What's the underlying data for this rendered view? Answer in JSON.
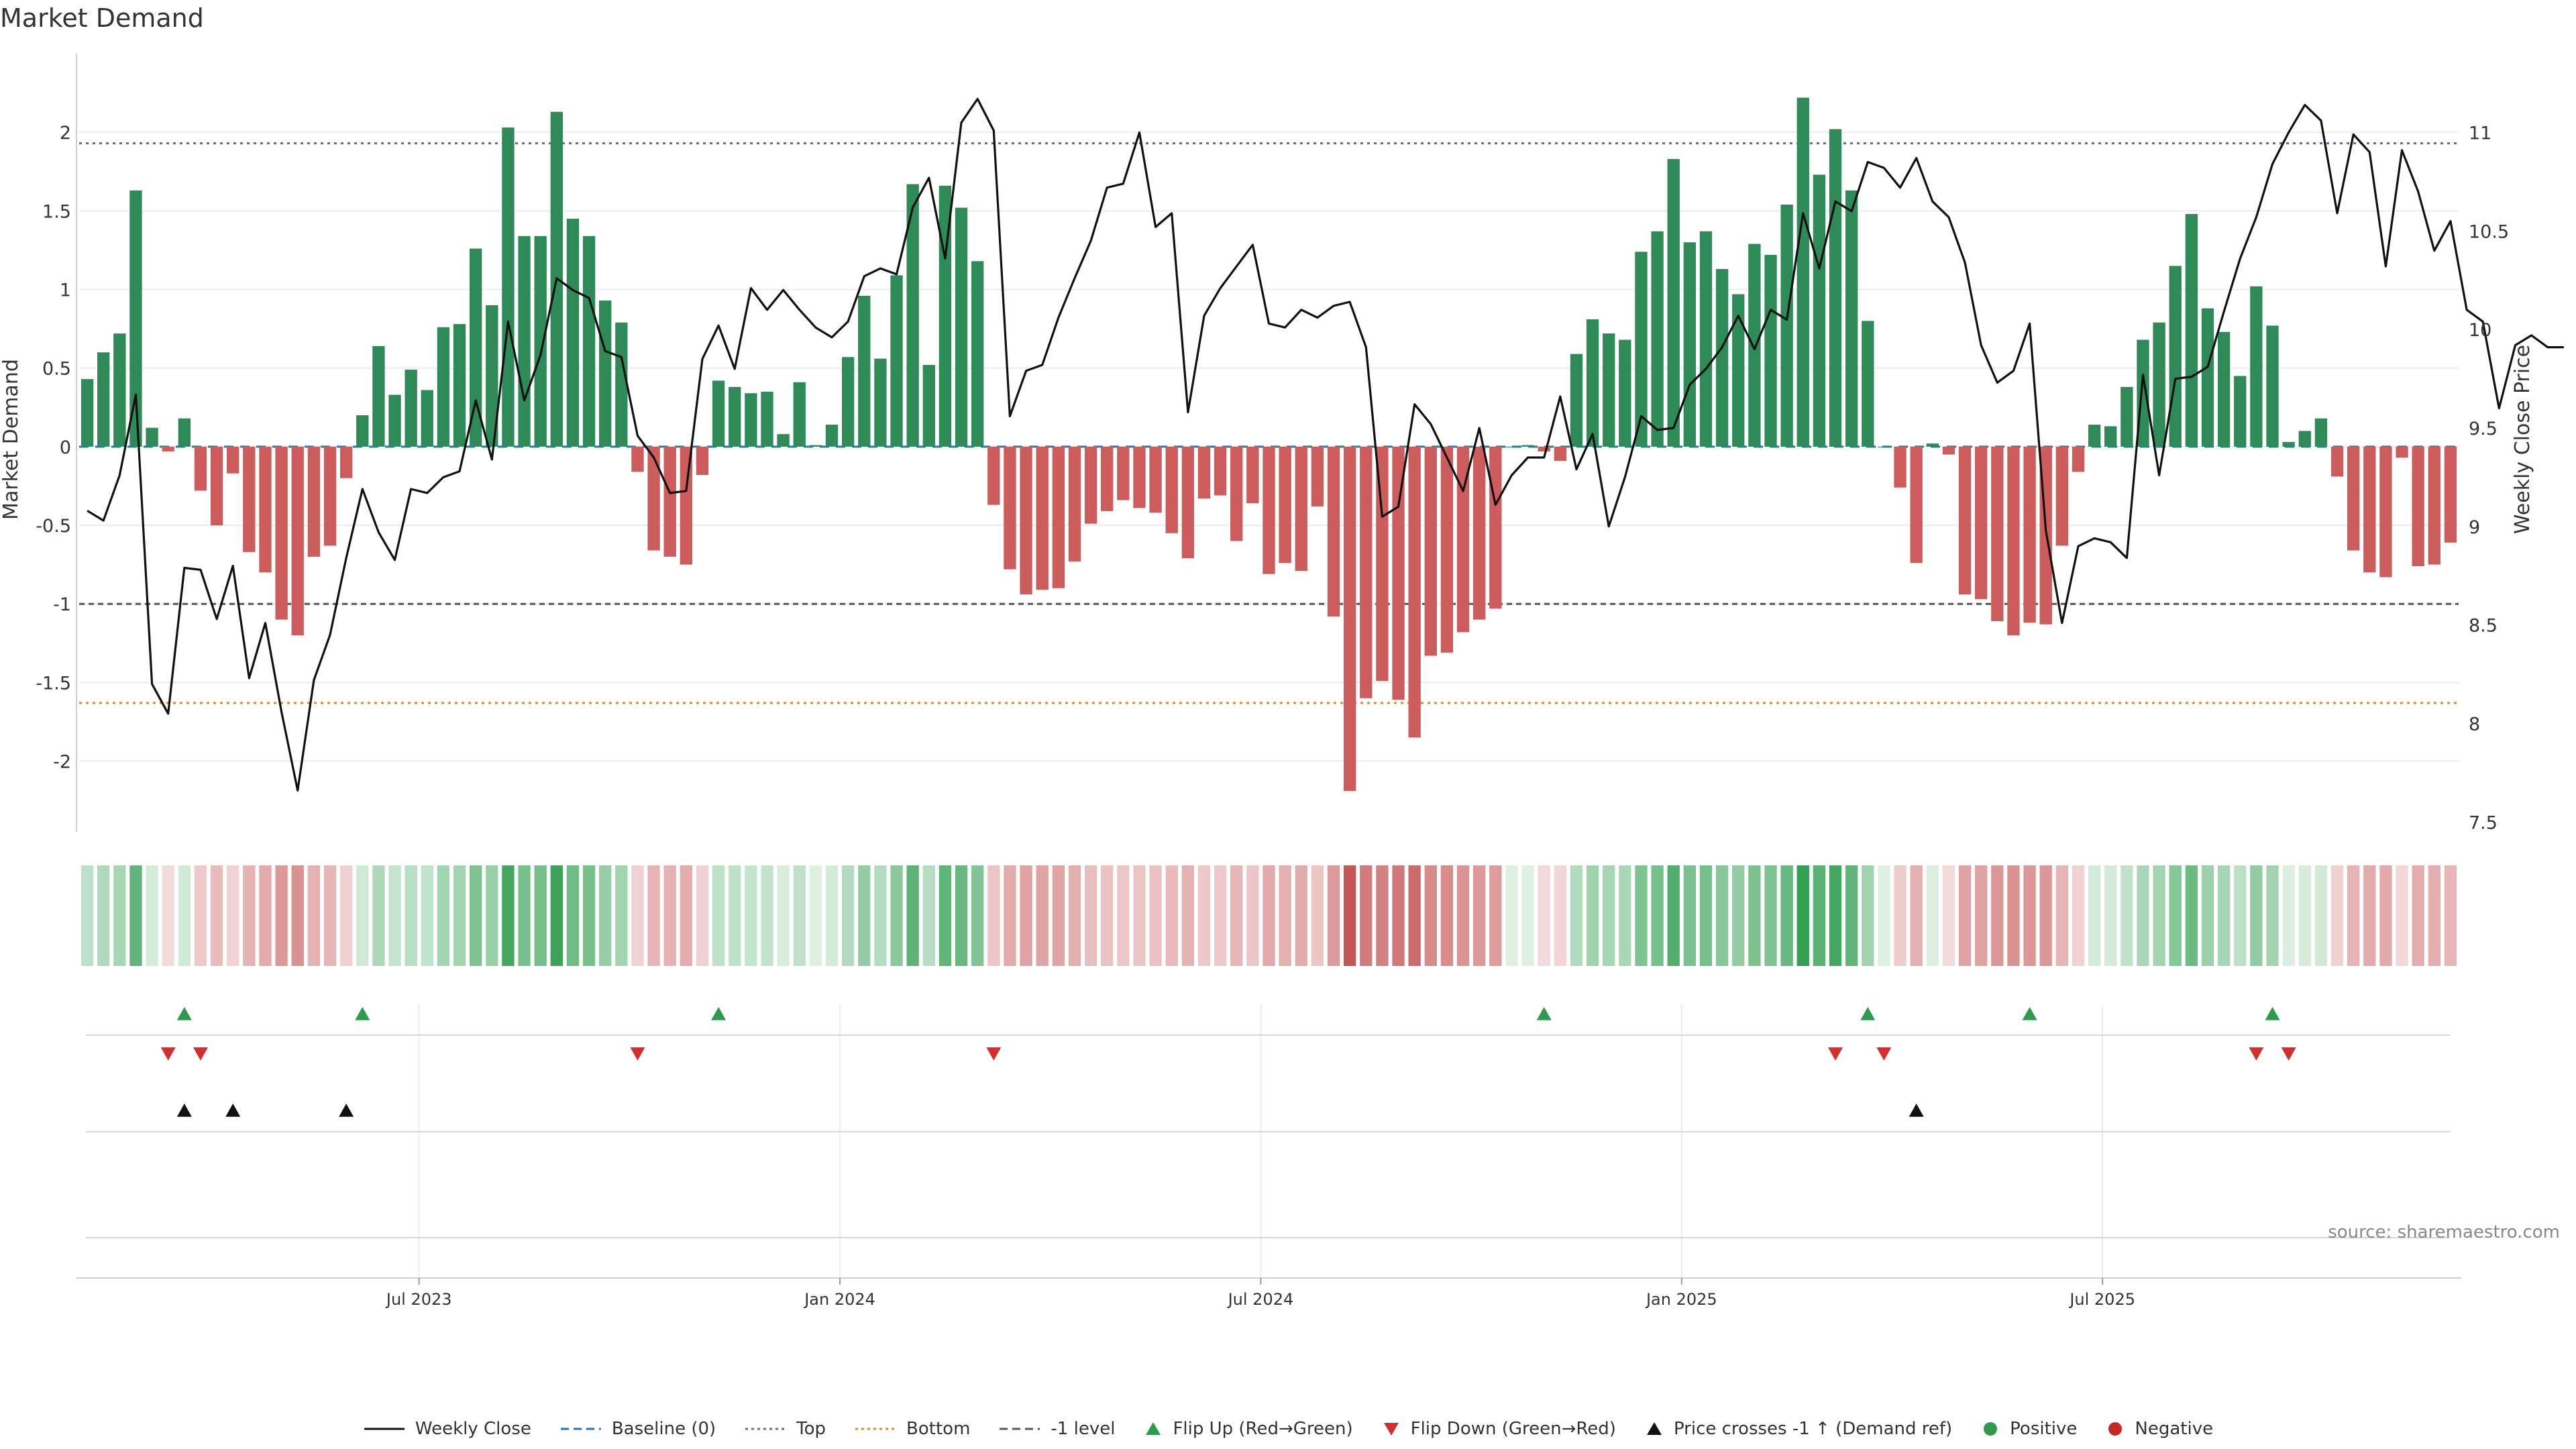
{
  "chart_data": {
    "type": "bar",
    "title": "Market Demand",
    "ylabel": "Market Demand",
    "y2label": "Weekly Close Price",
    "ylim": [
      -2.45,
      2.5
    ],
    "y2lim": [
      7.45,
      11.4
    ],
    "yticks": [
      "2",
      "1.5",
      "1",
      "0.5",
      "0",
      "-0.5",
      "-1",
      "-1.5",
      "-2"
    ],
    "ytick_values": [
      2,
      1.5,
      1,
      0.5,
      0,
      -0.5,
      -1,
      -1.5,
      -2
    ],
    "y2ticks": [
      "11",
      "10.5",
      "10",
      "9.5",
      "9",
      "8.5",
      "8",
      "7.5"
    ],
    "y2tick_values": [
      11,
      10.5,
      10,
      9.5,
      9,
      8.5,
      8,
      7.5
    ],
    "xticks": [
      {
        "label": "Jul 2023",
        "week": 21
      },
      {
        "label": "Jan 2024",
        "week": 47
      },
      {
        "label": "Jul 2024",
        "week": 73
      },
      {
        "label": "Jan 2025",
        "week": 99
      },
      {
        "label": "Jul 2025",
        "week": 125
      }
    ],
    "levels": {
      "top": 1.93,
      "bottom": -1.63,
      "minus_one": -1.0
    },
    "demand": [
      0.43,
      0.6,
      0.72,
      1.63,
      0.12,
      -0.03,
      0.18,
      -0.28,
      -0.5,
      -0.17,
      -0.67,
      -0.8,
      -1.1,
      -1.2,
      -0.7,
      -0.63,
      -0.2,
      0.2,
      0.64,
      0.33,
      0.49,
      0.36,
      0.76,
      0.78,
      1.26,
      0.9,
      2.03,
      1.34,
      1.34,
      2.13,
      1.45,
      1.34,
      0.93,
      0.79,
      -0.16,
      -0.66,
      -0.7,
      -0.75,
      -0.18,
      0.42,
      0.38,
      0.34,
      0.35,
      0.08,
      0.41,
      0.01,
      0.14,
      0.57,
      0.96,
      0.56,
      1.09,
      1.67,
      0.52,
      1.66,
      1.52,
      1.18,
      -0.37,
      -0.78,
      -0.94,
      -0.91,
      -0.9,
      -0.73,
      -0.49,
      -0.41,
      -0.34,
      -0.39,
      -0.42,
      -0.55,
      -0.71,
      -0.33,
      -0.31,
      -0.6,
      -0.36,
      -0.81,
      -0.74,
      -0.79,
      -0.38,
      -1.08,
      -2.19,
      -1.6,
      -1.49,
      -1.61,
      -1.85,
      -1.33,
      -1.31,
      -1.18,
      -1.1,
      -1.03,
      0.0,
      0.01,
      -0.03,
      -0.09,
      0.59,
      0.81,
      0.72,
      0.68,
      1.24,
      1.37,
      1.83,
      1.3,
      1.37,
      1.13,
      0.97,
      1.29,
      1.22,
      1.54,
      2.22,
      1.73,
      2.02,
      1.63,
      0.8,
      0.0,
      -0.26,
      -0.74,
      0.02,
      -0.05,
      -0.94,
      -0.97,
      -1.11,
      -1.2,
      -1.12,
      -1.13,
      -0.63,
      -0.16,
      0.14,
      0.13,
      0.38,
      0.68,
      0.79,
      1.15,
      1.48,
      0.88,
      0.73,
      0.45,
      1.02,
      0.77,
      0.03,
      0.1,
      0.18,
      -0.19,
      -0.66,
      -0.8,
      -0.83,
      -0.07,
      -0.76,
      -0.75,
      -0.61
    ],
    "close": [
      9.08,
      9.03,
      9.26,
      9.67,
      8.2,
      8.05,
      8.79,
      8.78,
      8.53,
      8.8,
      8.23,
      8.51,
      8.06,
      7.66,
      8.22,
      8.45,
      8.84,
      9.19,
      8.97,
      8.83,
      9.19,
      9.17,
      9.25,
      9.28,
      9.64,
      9.34,
      10.04,
      9.64,
      9.87,
      10.26,
      10.2,
      10.16,
      9.89,
      9.86,
      9.46,
      9.35,
      9.17,
      9.18,
      9.85,
      10.02,
      9.8,
      10.21,
      10.1,
      10.2,
      10.1,
      10.01,
      9.96,
      10.04,
      10.27,
      10.31,
      10.28,
      10.62,
      10.77,
      10.36,
      11.05,
      11.17,
      11.01,
      9.56,
      9.79,
      9.82,
      10.06,
      10.26,
      10.45,
      10.72,
      10.74,
      11.0,
      10.52,
      10.59,
      9.58,
      10.07,
      10.21,
      10.32,
      10.43,
      10.03,
      10.01,
      10.1,
      10.06,
      10.12,
      10.14,
      9.91,
      9.05,
      9.1,
      9.62,
      9.52,
      9.35,
      9.18,
      9.5,
      9.11,
      9.26,
      9.35,
      9.35,
      9.66,
      9.29,
      9.47,
      9.0,
      9.25,
      9.56,
      9.49,
      9.5,
      9.72,
      9.8,
      9.91,
      10.07,
      9.9,
      10.1,
      10.05,
      10.59,
      10.31,
      10.65,
      10.6,
      10.85,
      10.82,
      10.72,
      10.87,
      10.65,
      10.57,
      10.34,
      9.92,
      9.73,
      9.79,
      10.03,
      8.98,
      8.51,
      8.9,
      8.94,
      8.92,
      8.84,
      9.77,
      9.26,
      9.75,
      9.76,
      9.81,
      10.09,
      10.36,
      10.57,
      10.84,
      11.0,
      11.14,
      11.06,
      10.59,
      10.99,
      10.9,
      10.32,
      10.91,
      10.7,
      10.4,
      10.55,
      10.1,
      10.04,
      9.6,
      9.92,
      9.97,
      9.91,
      9.91
    ],
    "flip_up_weeks": [
      6,
      17,
      39,
      90,
      110,
      120,
      135
    ],
    "flip_down_weeks": [
      5,
      7,
      34,
      56,
      108,
      111,
      134,
      136
    ],
    "price_cross_weeks": [
      6,
      9,
      16,
      113
    ],
    "series": [
      {
        "name": "Weekly Close",
        "color": "#111111"
      },
      {
        "name": "Baseline (0)",
        "color": "#1f77b4"
      },
      {
        "name": "Top",
        "color": "#7b5ea7"
      },
      {
        "name": "Bottom",
        "color": "#e08a2c"
      },
      {
        "name": "-1 level",
        "color": "#555555"
      }
    ]
  },
  "legend": [
    {
      "label": "Weekly Close",
      "kind": "solid",
      "color": "#111111"
    },
    {
      "label": "Baseline (0)",
      "kind": "dashed",
      "color": "#1f77b4"
    },
    {
      "label": "Top",
      "kind": "dotted",
      "color": "#7b5ea7"
    },
    {
      "label": "Bottom",
      "kind": "dotted",
      "color": "#e08a2c"
    },
    {
      "label": "-1 level",
      "kind": "dashed",
      "color": "#555555"
    },
    {
      "label": "Flip Up (Red→Green)",
      "kind": "triangle-up",
      "color": "#2e9a4c"
    },
    {
      "label": "Flip Down (Green→Red)",
      "kind": "triangle-down",
      "color": "#d32f2f"
    },
    {
      "label": "Price crosses -1 ↑ (Demand ref)",
      "kind": "triangle-up",
      "color": "#111111"
    },
    {
      "label": "Positive",
      "kind": "circle",
      "color": "#2e9a4c"
    },
    {
      "label": "Negative",
      "kind": "circle",
      "color": "#c62828"
    }
  ],
  "colors": {
    "positive": "#2e8b57",
    "negative": "#cd5c5c",
    "grid": "#e6e6e6"
  },
  "source": "source: sharemaestro.com"
}
